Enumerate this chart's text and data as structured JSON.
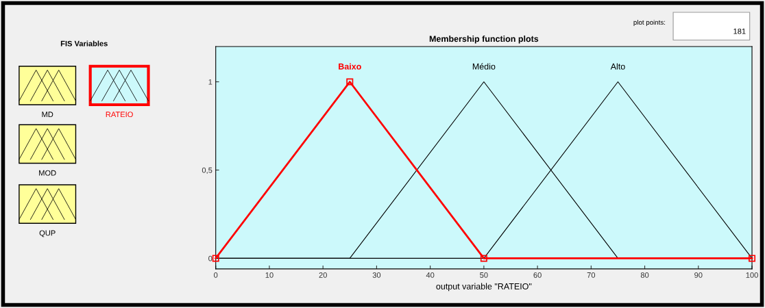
{
  "chart_data": {
    "type": "line",
    "title": "Membership function plots",
    "xlabel": "output variable \"RATEIO\"",
    "series": [
      {
        "name": "Médio",
        "color": "#000000",
        "x": [
          0,
          25,
          50,
          75,
          100
        ],
        "values": [
          0,
          0,
          1,
          0,
          0
        ]
      },
      {
        "name": "Alto",
        "color": "#000000",
        "x": [
          0,
          50,
          75,
          100
        ],
        "values": [
          0,
          0,
          1,
          0
        ]
      },
      {
        "name": "Baixo",
        "color": "#ff0000",
        "x": [
          0,
          25,
          50,
          100
        ],
        "values": [
          0,
          1,
          0,
          0
        ],
        "marker": "square"
      }
    ],
    "xlim": [
      0,
      100
    ],
    "xticks": [
      0,
      10,
      20,
      30,
      40,
      50,
      60,
      70,
      80,
      90,
      100
    ],
    "ylim": [
      -0.06,
      1.2
    ],
    "yticks": [
      0,
      {
        "value": 0.5,
        "label": "0,5"
      },
      1
    ],
    "grid": false,
    "legend": false,
    "annotations": [
      "FIS Variables",
      "MD",
      "MOD",
      "QUP",
      "RATEIO",
      "plot points:",
      "181"
    ]
  }
}
